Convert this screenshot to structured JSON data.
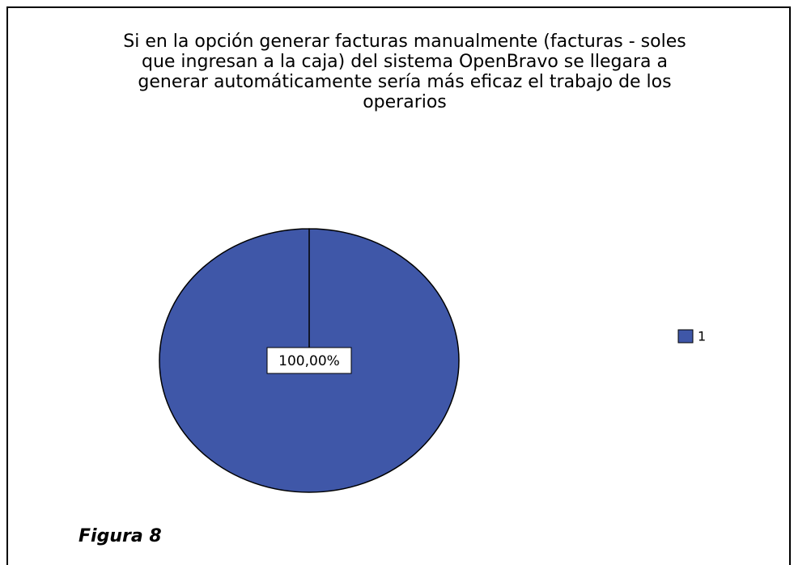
{
  "chart_data": {
    "type": "pie",
    "title": [
      "Si en la opción generar facturas manualmente (facturas - soles",
      "que ingresan a la caja) del sistema OpenBravo se llegara a",
      "generar automáticamente  sería más eficaz el trabajo de los",
      "operarios"
    ],
    "categories": [
      "1"
    ],
    "values": [
      100
    ],
    "value_labels": [
      "100,00%"
    ],
    "colors": [
      "#3f57a8"
    ],
    "legend": "right",
    "annotation": "Figura 8"
  }
}
